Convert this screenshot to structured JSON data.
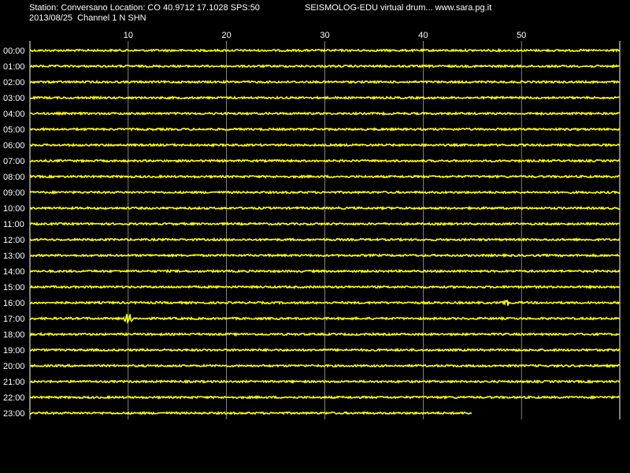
{
  "header": {
    "station_line": "Station: Conversano Location: CO 40.9712 17.1028 SPS:50",
    "app_line": "SEISMOLOG-EDU virtual drum... www.sara.pg.it",
    "date_line": "2013/08/25  Channel 1 N SHN"
  },
  "colors": {
    "background": "#000000",
    "trace": "#ffff00",
    "grid": "#ffffff",
    "text": "#ffffff"
  },
  "drum": {
    "minute_ticks": [
      "10",
      "20",
      "30",
      "40",
      "50"
    ],
    "minute_range": [
      0,
      60
    ],
    "hours": [
      "00:00",
      "01:00",
      "02:00",
      "03:00",
      "04:00",
      "05:00",
      "06:00",
      "07:00",
      "08:00",
      "09:00",
      "10:00",
      "11:00",
      "12:00",
      "13:00",
      "14:00",
      "15:00",
      "16:00",
      "17:00",
      "18:00",
      "19:00",
      "20:00",
      "21:00",
      "22:00",
      "23:00"
    ],
    "last_trace_end_minute": 45,
    "events": [
      {
        "hour": "16:00",
        "minute": 48.5,
        "amplitude": 1.4
      },
      {
        "hour": "17:00",
        "minute": 10.0,
        "amplitude": 2.8
      }
    ]
  }
}
